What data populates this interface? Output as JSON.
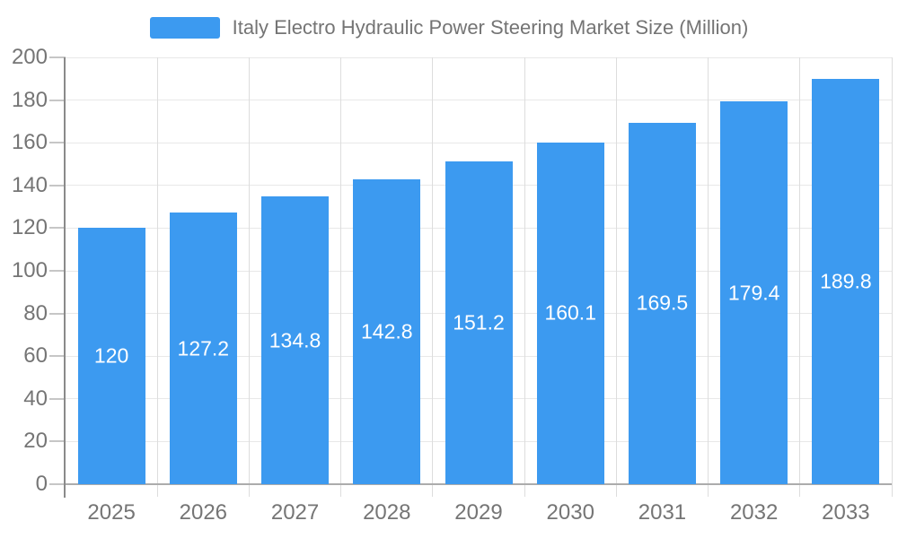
{
  "chart_data": {
    "type": "bar",
    "title": "",
    "categories": [
      "2025",
      "2026",
      "2027",
      "2028",
      "2029",
      "2030",
      "2031",
      "2032",
      "2033"
    ],
    "series": [
      {
        "name": "Italy Electro Hydraulic Power Steering Market Size (Million)",
        "values": [
          120,
          127.2,
          134.8,
          142.8,
          151.2,
          160.1,
          169.5,
          179.4,
          189.8
        ]
      }
    ],
    "bar_value_labels": [
      "120",
      "127.2",
      "134.8",
      "142.8",
      "151.2",
      "160.1",
      "169.5",
      "179.4",
      "189.8"
    ],
    "xlabel": "",
    "ylabel": "",
    "ylim": [
      0,
      200
    ],
    "ytick_interval": 20,
    "ytick_labels": [
      "0",
      "20",
      "40",
      "60",
      "80",
      "100",
      "120",
      "140",
      "160",
      "180",
      "200"
    ],
    "grid": true,
    "legend_position": "top-center",
    "bar_label_position": "inside-center"
  },
  "colors": {
    "bar": "#3C9AF0",
    "bar_label": "#FFFFFF",
    "axis_label": "#757575",
    "legend_text": "#747474",
    "grid_horizontal": "#E8E8E8",
    "grid_vertical": "#DDDDDD",
    "y_tick": "#C6C6C6",
    "y_axis_line": "#8A8A8A",
    "x_axis_line": "#ACACAC",
    "background": "#FFFFFF"
  }
}
